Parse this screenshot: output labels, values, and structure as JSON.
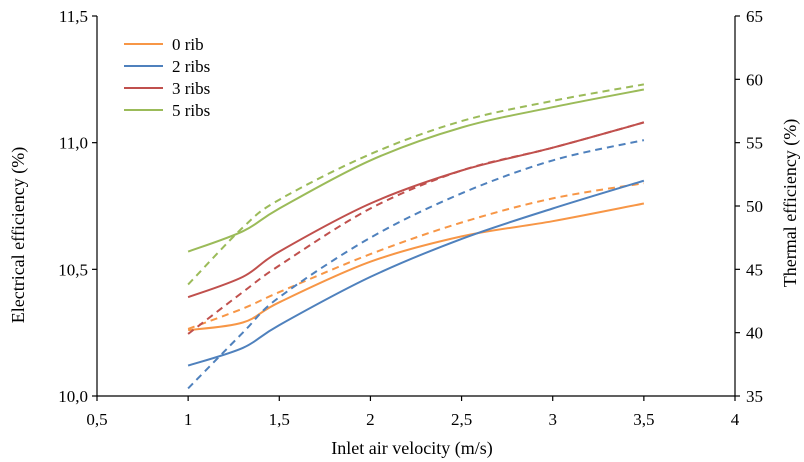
{
  "chart_data": {
    "type": "line",
    "xlabel": "Inlet air velocity (m/s)",
    "ylabel_left": "Electrical efficiency (%)",
    "ylabel_right": "Thermal efficiency (%)",
    "xlim": [
      0.5,
      4
    ],
    "ylim_left": [
      10.0,
      11.5
    ],
    "ylim_right": [
      35,
      65
    ],
    "x_ticks": [
      "0,5",
      "1",
      "1,5",
      "2",
      "2,5",
      "3",
      "3,5",
      "4"
    ],
    "y_left_ticks": [
      "10,0",
      "10,5",
      "11,0",
      "11,5"
    ],
    "y_right_ticks": [
      "35",
      "40",
      "45",
      "50",
      "55",
      "60",
      "65"
    ],
    "grid": false,
    "legend_position": "top-left",
    "notes": "Solid lines: electrical efficiency (left axis). Dashed lines: thermal efficiency (right axis).",
    "series": [
      {
        "name": "0 rib",
        "color": "#F79646",
        "electrical": {
          "x": [
            1.0,
            1.3,
            1.5,
            2.0,
            2.5,
            3.0,
            3.5
          ],
          "y": [
            10.26,
            10.29,
            10.37,
            10.53,
            10.63,
            10.69,
            10.76
          ]
        },
        "thermal": {
          "x": [
            1.0,
            1.3,
            1.5,
            2.0,
            2.5,
            3.0,
            3.5
          ],
          "y": [
            40.3,
            41.9,
            43.2,
            46.2,
            48.7,
            50.6,
            51.8
          ]
        }
      },
      {
        "name": "2 ribs",
        "color": "#4F81BD",
        "electrical": {
          "x": [
            1.0,
            1.3,
            1.5,
            2.0,
            2.5,
            3.0,
            3.5
          ],
          "y": [
            10.12,
            10.19,
            10.28,
            10.47,
            10.62,
            10.74,
            10.85
          ]
        },
        "thermal": {
          "x": [
            1.0,
            1.3,
            1.5,
            2.0,
            2.5,
            3.0,
            3.5
          ],
          "y": [
            35.6,
            40.0,
            42.8,
            47.5,
            51.0,
            53.6,
            55.2
          ]
        }
      },
      {
        "name": "3 ribs",
        "color": "#C0504D",
        "electrical": {
          "x": [
            1.0,
            1.3,
            1.5,
            2.0,
            2.5,
            3.0,
            3.5
          ],
          "y": [
            10.39,
            10.47,
            10.57,
            10.76,
            10.89,
            10.98,
            11.08
          ]
        },
        "thermal": {
          "x": [
            1.0,
            1.3,
            1.5,
            2.0,
            2.5,
            3.0,
            3.5
          ],
          "y": [
            39.9,
            43.2,
            45.3,
            49.8,
            52.8,
            54.6,
            56.6
          ]
        }
      },
      {
        "name": "5 ribs",
        "color": "#9BBB59",
        "electrical": {
          "x": [
            1.0,
            1.3,
            1.5,
            2.0,
            2.5,
            3.0,
            3.5
          ],
          "y": [
            10.57,
            10.65,
            10.74,
            10.93,
            11.06,
            11.14,
            11.21
          ]
        },
        "thermal": {
          "x": [
            1.0,
            1.3,
            1.5,
            2.0,
            2.5,
            3.0,
            3.5
          ],
          "y": [
            43.8,
            48.3,
            50.5,
            54.1,
            56.7,
            58.3,
            59.6
          ]
        }
      }
    ]
  }
}
